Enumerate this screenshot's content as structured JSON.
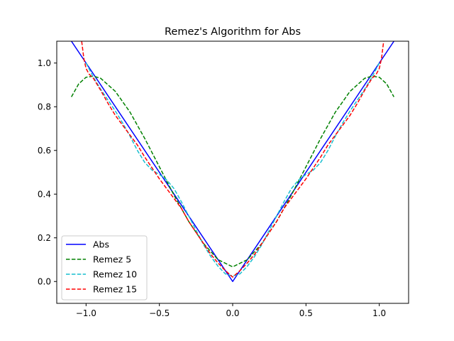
{
  "chart_data": {
    "type": "line",
    "title": "Remez's Algorithm for Abs",
    "xlabel": "",
    "ylabel": "",
    "xlim": [
      -1.2,
      1.2
    ],
    "ylim": [
      -0.1,
      1.1
    ],
    "xticks": [
      -1.0,
      -0.5,
      0.0,
      0.5,
      1.0
    ],
    "xtick_labels": [
      "−1.0",
      "−0.5",
      "0.0",
      "0.5",
      "1.0"
    ],
    "yticks": [
      0.0,
      0.2,
      0.4,
      0.6,
      0.8,
      1.0
    ],
    "ytick_labels": [
      "0.0",
      "0.2",
      "0.4",
      "0.6",
      "0.8",
      "1.0"
    ],
    "grid": false,
    "legend_position": "lower-left",
    "series": [
      {
        "name": "Abs",
        "color": "#0000ff",
        "style": "solid",
        "x": [
          -1.1,
          0.0,
          1.1
        ],
        "y": [
          1.1,
          0.0,
          1.1
        ]
      },
      {
        "name": "Remez 5",
        "color": "#008000",
        "style": "dashed",
        "x": [
          -1.1,
          -1.05,
          -1.0,
          -0.95,
          -0.9,
          -0.8,
          -0.7,
          -0.6,
          -0.5,
          -0.4,
          -0.3,
          -0.2,
          -0.1,
          0.0,
          0.1,
          0.2,
          0.3,
          0.4,
          0.5,
          0.6,
          0.7,
          0.8,
          0.9,
          0.95,
          1.0,
          1.05,
          1.1
        ],
        "y": [
          0.845,
          0.905,
          0.935,
          0.94,
          0.93,
          0.87,
          0.775,
          0.655,
          0.525,
          0.395,
          0.275,
          0.175,
          0.1,
          0.067,
          0.1,
          0.175,
          0.275,
          0.395,
          0.525,
          0.655,
          0.775,
          0.87,
          0.93,
          0.94,
          0.935,
          0.905,
          0.845
        ]
      },
      {
        "name": "Remez 10",
        "color": "#17becf",
        "style": "dashed",
        "x": [
          -1.0,
          -0.95,
          -0.9,
          -0.85,
          -0.8,
          -0.75,
          -0.7,
          -0.65,
          -0.6,
          -0.55,
          -0.5,
          -0.45,
          -0.4,
          -0.35,
          -0.3,
          -0.25,
          -0.2,
          -0.15,
          -0.1,
          -0.05,
          0.0,
          0.05,
          0.1,
          0.15,
          0.2,
          0.25,
          0.3,
          0.35,
          0.4,
          0.45,
          0.5,
          0.55,
          0.6,
          0.65,
          0.7,
          0.75,
          0.8,
          0.85,
          0.9,
          0.95,
          1.0
        ],
        "y": [
          1.0,
          0.935,
          0.88,
          0.83,
          0.78,
          0.725,
          0.665,
          0.6,
          0.545,
          0.51,
          0.49,
          0.465,
          0.425,
          0.365,
          0.3,
          0.235,
          0.17,
          0.115,
          0.07,
          0.035,
          0.025,
          0.035,
          0.07,
          0.115,
          0.17,
          0.235,
          0.3,
          0.365,
          0.425,
          0.465,
          0.49,
          0.51,
          0.545,
          0.6,
          0.665,
          0.725,
          0.78,
          0.83,
          0.88,
          0.935,
          1.0
        ]
      },
      {
        "name": "Remez 15",
        "color": "#ff0000",
        "style": "dashed",
        "x": [
          -1.03,
          -1.015,
          -1.0,
          -0.98,
          -0.95,
          -0.9,
          -0.85,
          -0.8,
          -0.75,
          -0.7,
          -0.65,
          -0.6,
          -0.55,
          -0.5,
          -0.45,
          -0.4,
          -0.35,
          -0.3,
          -0.25,
          -0.2,
          -0.15,
          -0.1,
          -0.05,
          0.0,
          0.05,
          0.1,
          0.15,
          0.2,
          0.25,
          0.3,
          0.35,
          0.4,
          0.45,
          0.5,
          0.55,
          0.6,
          0.65,
          0.7,
          0.75,
          0.8,
          0.85,
          0.9,
          0.95,
          0.98,
          1.0,
          1.015,
          1.03
        ],
        "y": [
          1.1,
          1.02,
          0.975,
          0.95,
          0.93,
          0.875,
          0.815,
          0.76,
          0.715,
          0.67,
          0.625,
          0.57,
          0.52,
          0.47,
          0.425,
          0.38,
          0.335,
          0.275,
          0.225,
          0.175,
          0.125,
          0.085,
          0.05,
          0.02,
          0.05,
          0.085,
          0.125,
          0.175,
          0.225,
          0.275,
          0.335,
          0.38,
          0.425,
          0.47,
          0.52,
          0.57,
          0.625,
          0.67,
          0.715,
          0.76,
          0.815,
          0.875,
          0.93,
          0.95,
          0.975,
          1.02,
          1.1
        ]
      }
    ]
  }
}
